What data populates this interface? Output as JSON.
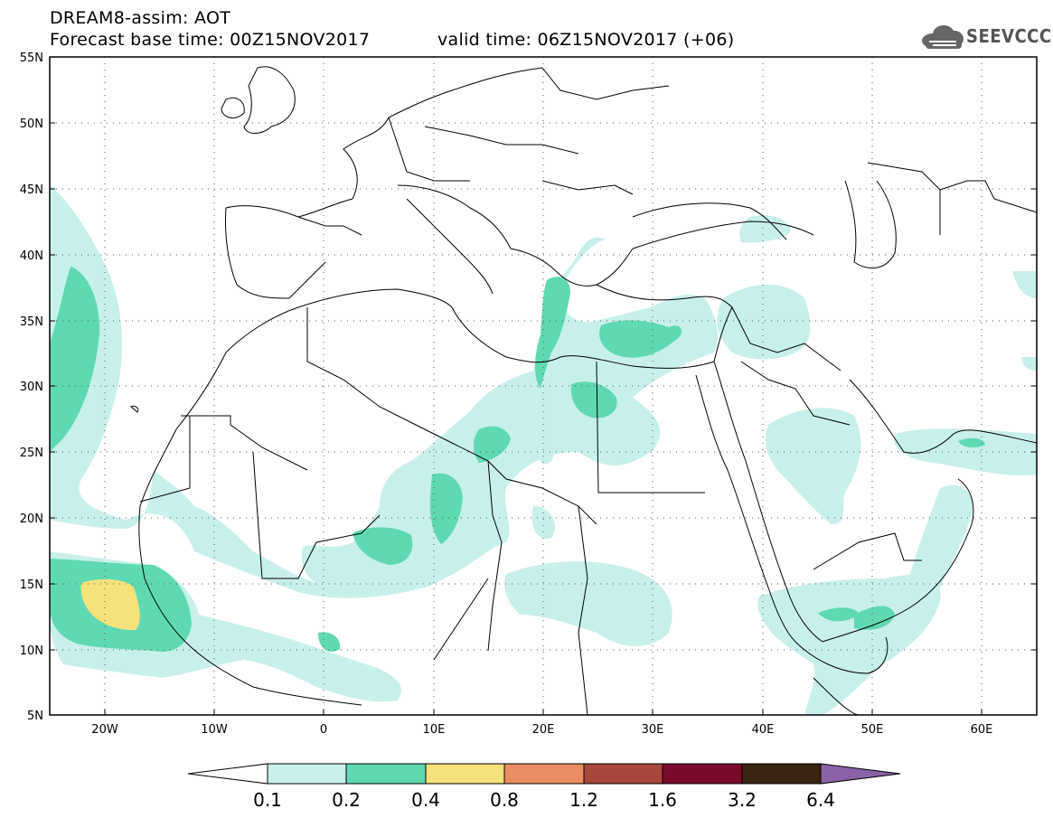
{
  "header": {
    "model_title": "DREAM8-assim: AOT",
    "base_time": "Forecast base time: 00Z15NOV2017",
    "valid_time": "valid time: 06Z15NOV2017 (+06)",
    "logo_text": "SEEVCCC"
  },
  "map": {
    "lon_range": [
      -25,
      65
    ],
    "lat_range": [
      5,
      55
    ],
    "lat_labels": [
      "55N",
      "50N",
      "45N",
      "40N",
      "35N",
      "30N",
      "25N",
      "20N",
      "15N",
      "10N",
      "5N"
    ],
    "lon_labels": [
      "20W",
      "10W",
      "0",
      "10E",
      "20E",
      "30E",
      "40E",
      "50E",
      "60E"
    ],
    "dust_contours": [
      {
        "level": "0.1-0.2",
        "color": "#c8f0ea"
      },
      {
        "level": "0.2-0.4",
        "color": "#5fd9b1"
      },
      {
        "level": "0.4-0.8",
        "color": "#f5e27a"
      }
    ]
  },
  "colorbar": {
    "labels": [
      "0.1",
      "0.2",
      "0.4",
      "0.8",
      "1.2",
      "1.6",
      "3.2",
      "6.4"
    ],
    "colors": [
      "#ffffff",
      "#c8f0ea",
      "#5fd9b1",
      "#f5e27a",
      "#e98d62",
      "#a7473b",
      "#7a0a2c",
      "#3a2412",
      "#8b62a8"
    ]
  }
}
